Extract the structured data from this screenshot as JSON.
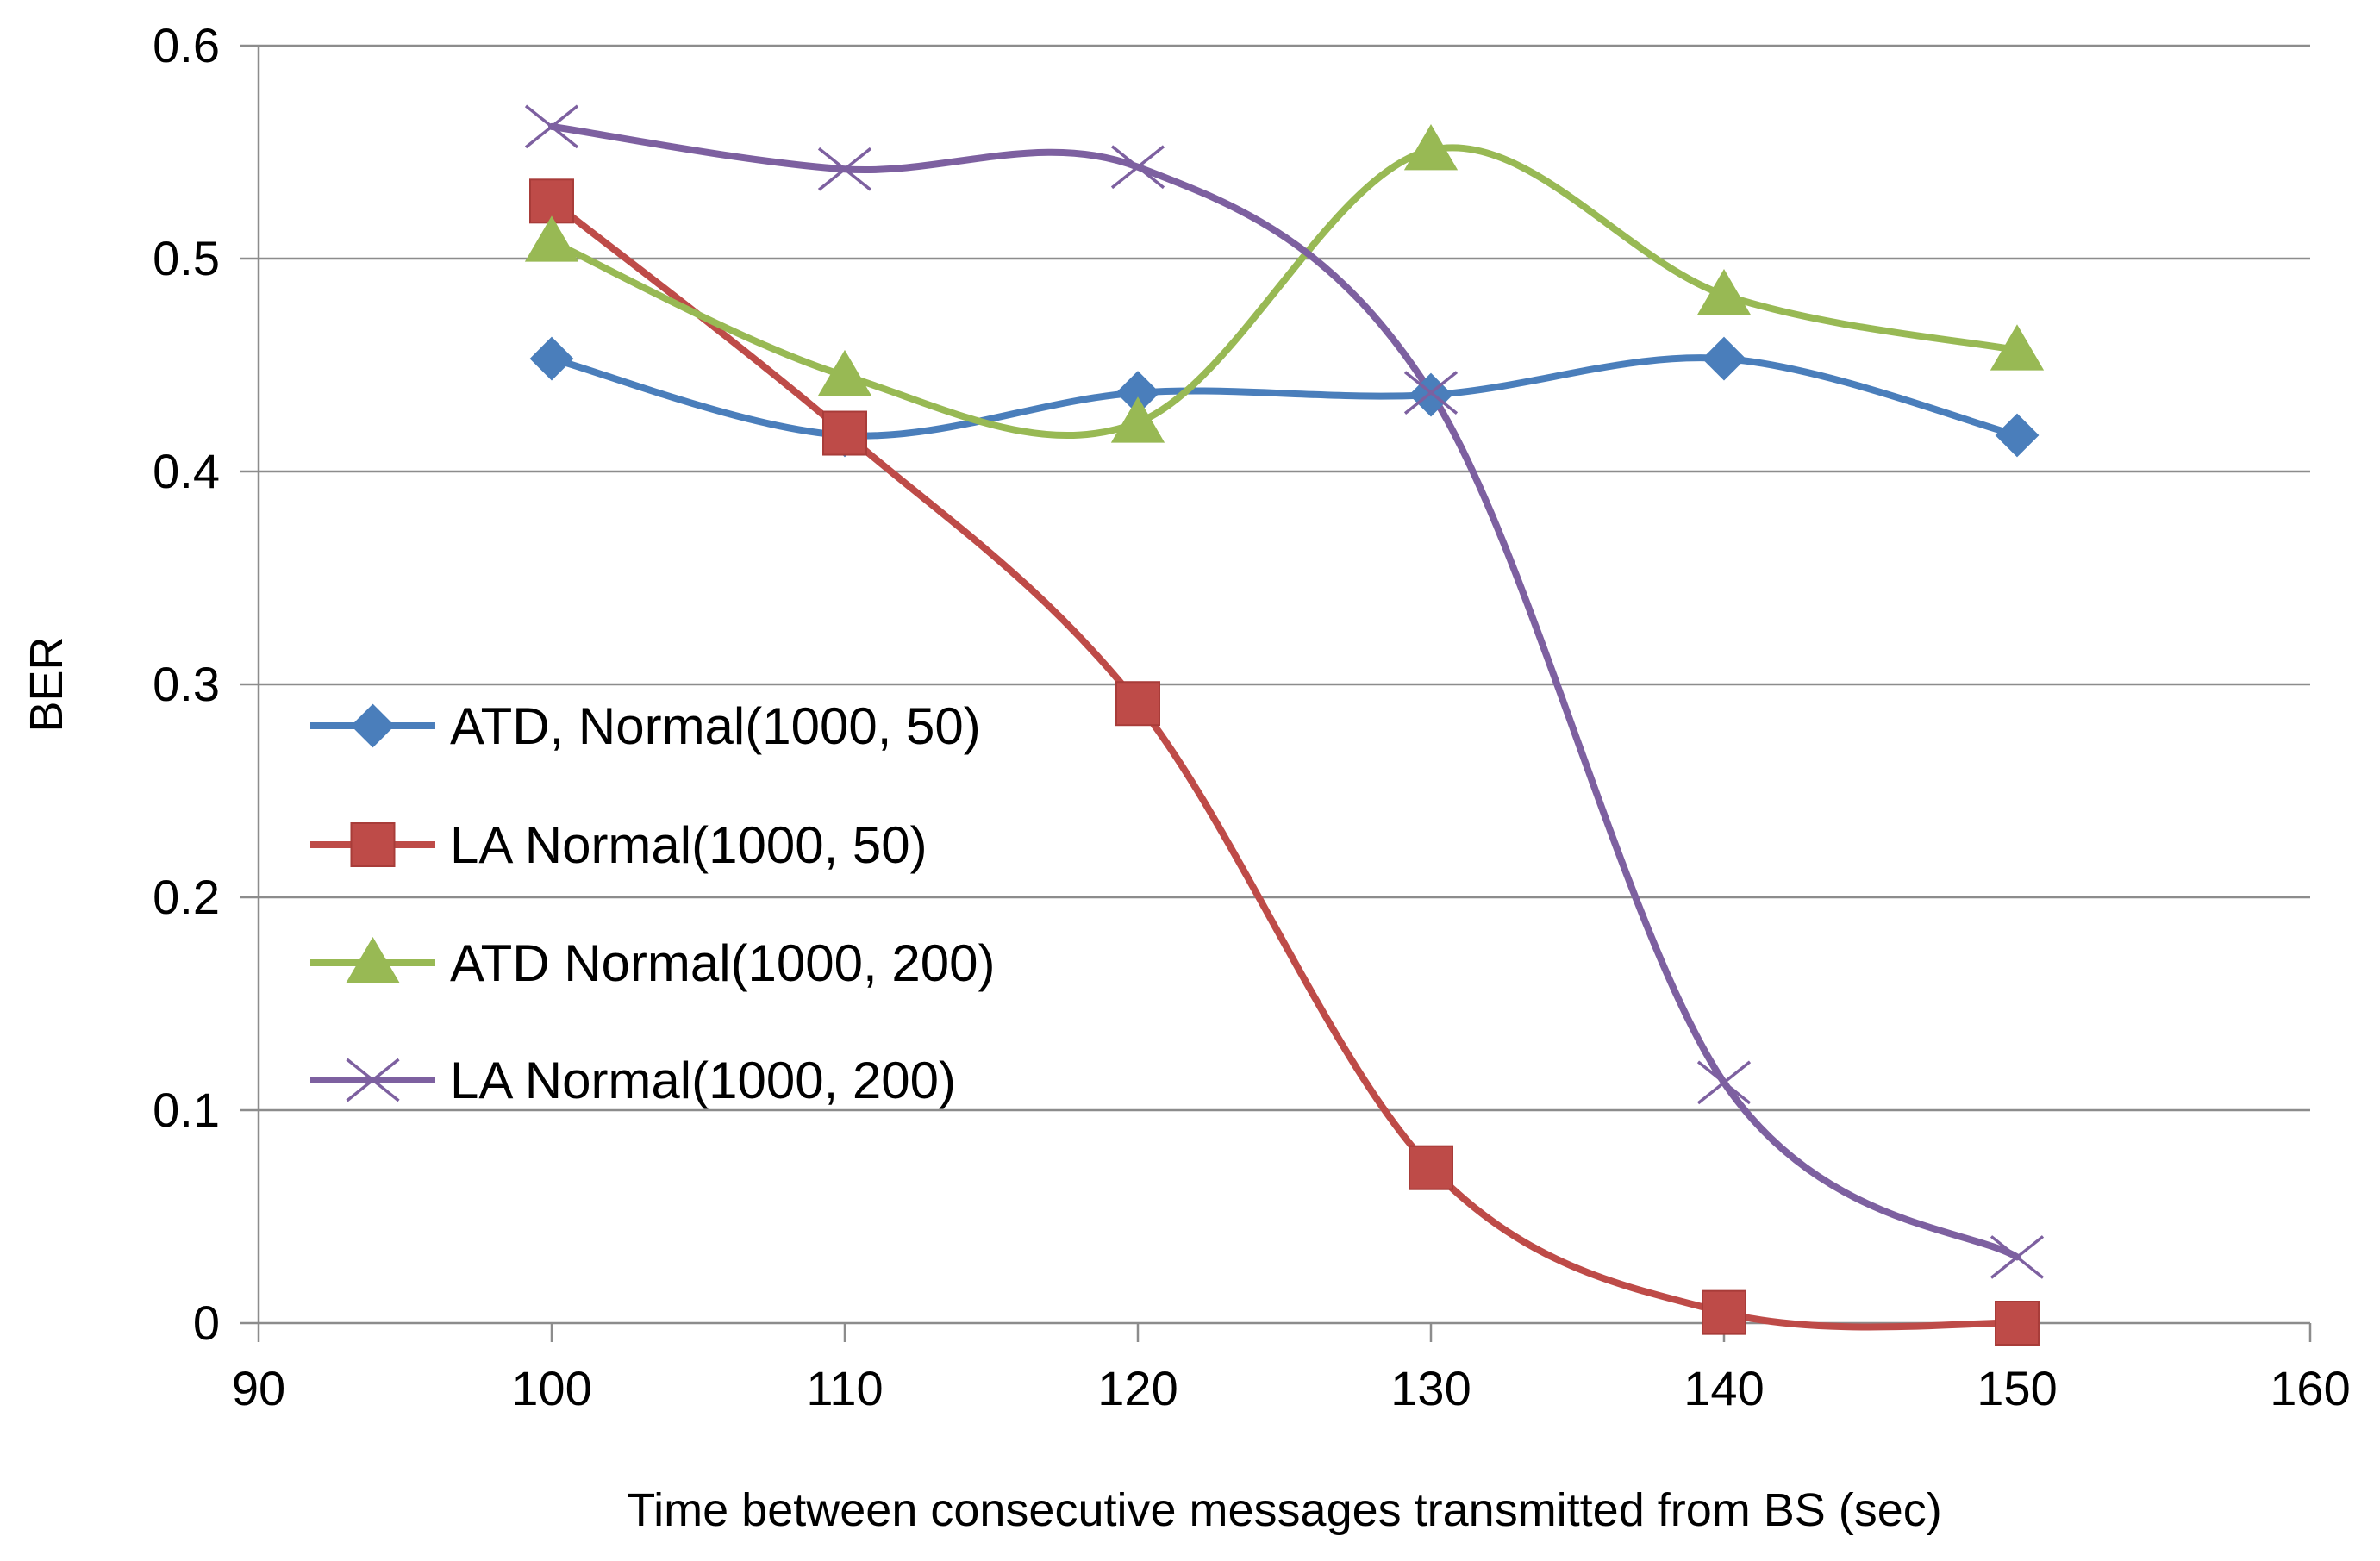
{
  "chart_data": {
    "type": "line",
    "title": "",
    "xlabel": "Time between consecutive messages transmitted from BS (sec)",
    "ylabel": "BER",
    "xlim": [
      90,
      160
    ],
    "ylim": [
      0,
      0.6
    ],
    "xticks": [
      90,
      100,
      110,
      120,
      130,
      140,
      150,
      160
    ],
    "yticks": [
      0,
      0.1,
      0.2,
      0.3,
      0.4,
      0.5,
      0.6
    ],
    "xtick_labels": [
      "90",
      "100",
      "110",
      "120",
      "130",
      "140",
      "150",
      "160"
    ],
    "ytick_labels": [
      "0",
      "0.1",
      "0.2",
      "0.3",
      "0.4",
      "0.5",
      "0.6"
    ],
    "grid": "horizontal",
    "smooth": true,
    "legend_position": "center-left",
    "x": [
      100,
      110,
      120,
      130,
      140,
      150
    ],
    "series": [
      {
        "name": "ATD, Normal(1000, 50)",
        "color": "#4a7ebb",
        "marker": "diamond",
        "values": [
          0.453,
          0.417,
          0.437,
          0.436,
          0.453,
          0.417
        ]
      },
      {
        "name": "LA Normal(1000, 50)",
        "color": "#be4b48",
        "marker": "square",
        "values": [
          0.527,
          0.418,
          0.291,
          0.073,
          0.005,
          0.0
        ]
      },
      {
        "name": "ATD Normal(1000, 200)",
        "color": "#98b954",
        "marker": "triangle",
        "values": [
          0.508,
          0.445,
          0.423,
          0.551,
          0.483,
          0.457
        ]
      },
      {
        "name": "LA Normal(1000, 200)",
        "color": "#7d60a0",
        "marker": "x",
        "values": [
          0.562,
          0.542,
          0.543,
          0.437,
          0.113,
          0.031
        ]
      }
    ]
  }
}
